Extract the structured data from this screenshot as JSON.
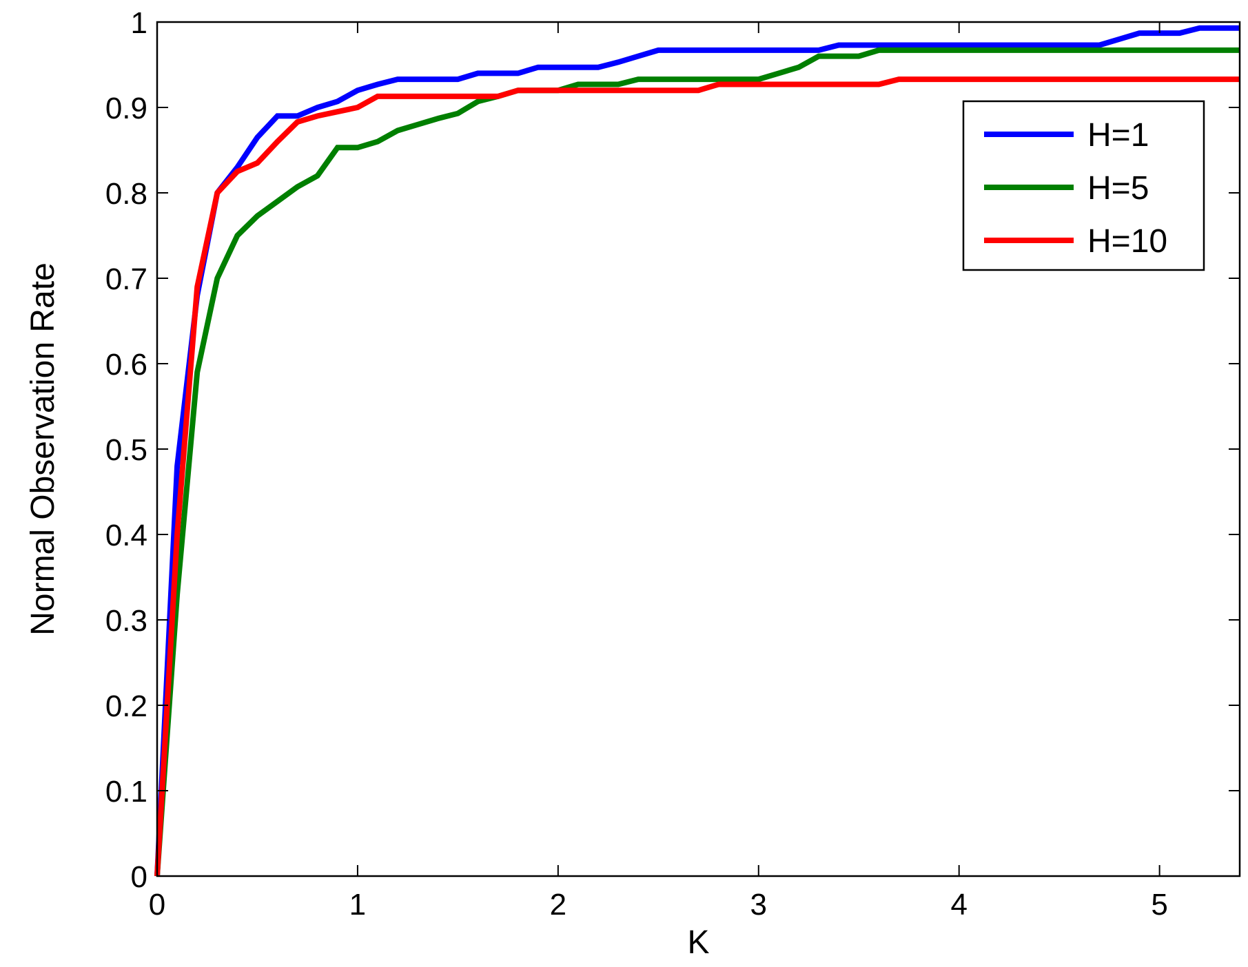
{
  "chart_data": {
    "type": "line",
    "title": "",
    "xlabel": "K",
    "ylabel": "Normal Observation Rate",
    "xlim": [
      0,
      5.4
    ],
    "ylim": [
      0,
      1
    ],
    "x_ticks": [
      "0",
      "1",
      "2",
      "3",
      "4",
      "5"
    ],
    "y_ticks": [
      "0",
      "0.1",
      "0.2",
      "0.3",
      "0.4",
      "0.5",
      "0.6",
      "0.7",
      "0.8",
      "0.9",
      "1"
    ],
    "grid": false,
    "legend_position": "top-right",
    "x": [
      0,
      0.1,
      0.2,
      0.3,
      0.4,
      0.5,
      0.6,
      0.7,
      0.8,
      0.9,
      1.0,
      1.1,
      1.2,
      1.3,
      1.4,
      1.5,
      1.6,
      1.7,
      1.8,
      1.9,
      2.0,
      2.1,
      2.2,
      2.3,
      2.4,
      2.5,
      2.6,
      2.7,
      2.8,
      2.9,
      3.0,
      3.1,
      3.2,
      3.3,
      3.4,
      3.5,
      3.6,
      3.7,
      3.8,
      3.9,
      4.0,
      4.1,
      4.2,
      4.3,
      4.4,
      4.5,
      4.6,
      4.7,
      4.8,
      4.9,
      5.0,
      5.1,
      5.2,
      5.3,
      5.4
    ],
    "series": [
      {
        "name": "H=1",
        "color": "#0000ff",
        "values": [
          0,
          0.48,
          0.68,
          0.8,
          0.83,
          0.865,
          0.89,
          0.89,
          0.9,
          0.907,
          0.92,
          0.927,
          0.933,
          0.933,
          0.933,
          0.933,
          0.94,
          0.94,
          0.94,
          0.947,
          0.947,
          0.947,
          0.947,
          0.953,
          0.96,
          0.967,
          0.967,
          0.967,
          0.967,
          0.967,
          0.967,
          0.967,
          0.967,
          0.967,
          0.973,
          0.973,
          0.973,
          0.973,
          0.973,
          0.973,
          0.973,
          0.973,
          0.973,
          0.973,
          0.973,
          0.973,
          0.973,
          0.973,
          0.98,
          0.987,
          0.987,
          0.987,
          0.993,
          0.993,
          0.993
        ]
      },
      {
        "name": "H=5",
        "color": "#007f00",
        "values": [
          0,
          0.33,
          0.59,
          0.7,
          0.75,
          0.773,
          0.79,
          0.807,
          0.82,
          0.853,
          0.853,
          0.86,
          0.873,
          0.88,
          0.887,
          0.893,
          0.907,
          0.913,
          0.92,
          0.92,
          0.92,
          0.927,
          0.927,
          0.927,
          0.933,
          0.933,
          0.933,
          0.933,
          0.933,
          0.933,
          0.933,
          0.94,
          0.947,
          0.96,
          0.96,
          0.96,
          0.967,
          0.967,
          0.967,
          0.967,
          0.967,
          0.967,
          0.967,
          0.967,
          0.967,
          0.967,
          0.967,
          0.967,
          0.967,
          0.967,
          0.967,
          0.967,
          0.967,
          0.967,
          0.967
        ]
      },
      {
        "name": "H=10",
        "color": "#ff0000",
        "values": [
          0,
          0.4,
          0.69,
          0.8,
          0.825,
          0.835,
          0.86,
          0.883,
          0.89,
          0.895,
          0.9,
          0.913,
          0.913,
          0.913,
          0.913,
          0.913,
          0.913,
          0.913,
          0.92,
          0.92,
          0.92,
          0.92,
          0.92,
          0.92,
          0.92,
          0.92,
          0.92,
          0.92,
          0.927,
          0.927,
          0.927,
          0.927,
          0.927,
          0.927,
          0.927,
          0.927,
          0.927,
          0.933,
          0.933,
          0.933,
          0.933,
          0.933,
          0.933,
          0.933,
          0.933,
          0.933,
          0.933,
          0.933,
          0.933,
          0.933,
          0.933,
          0.933,
          0.933,
          0.933,
          0.933
        ]
      }
    ]
  }
}
